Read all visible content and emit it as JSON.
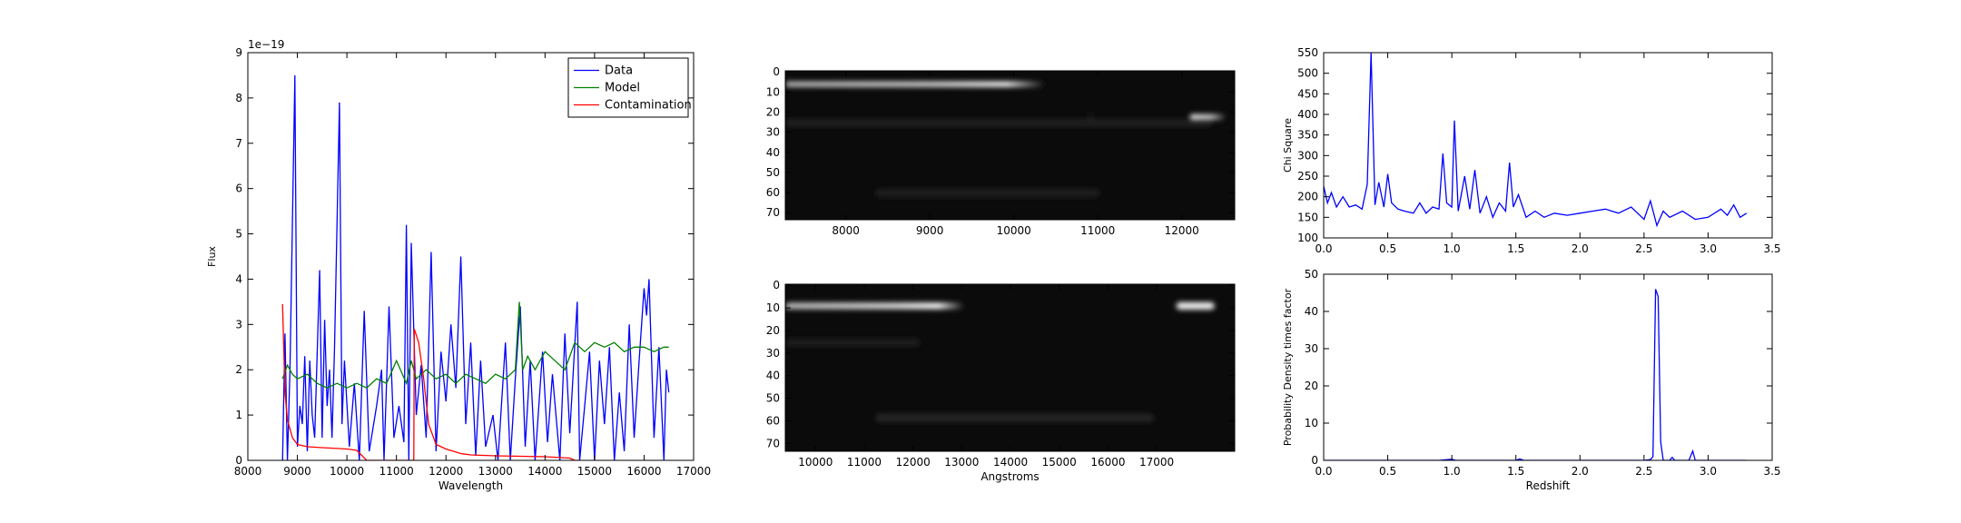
{
  "chart_data": [
    {
      "type": "line",
      "offset_text": "1e−19",
      "xlabel": "Wavelength",
      "ylabel": "Flux",
      "xlim": [
        8000,
        17000
      ],
      "ylim": [
        0,
        9
      ],
      "xticks": [
        8000,
        9000,
        10000,
        11000,
        12000,
        13000,
        14000,
        15000,
        16000,
        17000
      ],
      "yticks": [
        0,
        1,
        2,
        3,
        4,
        5,
        6,
        7,
        8,
        9
      ],
      "legend": "upper right",
      "series": [
        {
          "name": "Data",
          "color": "#0000ff",
          "x": [
            8700,
            8750,
            8800,
            8850,
            8950,
            9000,
            9050,
            9100,
            9150,
            9200,
            9250,
            9300,
            9350,
            9450,
            9500,
            9550,
            9600,
            9650,
            9700,
            9750,
            9850,
            9900,
            9950,
            10050,
            10150,
            10250,
            10350,
            10450,
            10600,
            10700,
            10750,
            10850,
            10950,
            11050,
            11150,
            11200,
            11250,
            11300,
            11400,
            11500,
            11600,
            11700,
            11800,
            11900,
            12000,
            12100,
            12200,
            12300,
            12400,
            12500,
            12600,
            12700,
            12800,
            12950,
            13050,
            13200,
            13300,
            13400,
            13500,
            13600,
            13700,
            13800,
            13950,
            14050,
            14150,
            14300,
            14400,
            14500,
            14650,
            14700,
            14800,
            14900,
            15000,
            15100,
            15200,
            15300,
            15400,
            15500,
            15600,
            15700,
            15800,
            15900,
            16000,
            16050,
            16100,
            16200,
            16300,
            16400,
            16450,
            16500
          ],
          "values": [
            0,
            2.8,
            0,
            2.0,
            8.5,
            0.3,
            1.2,
            0.8,
            2.3,
            0.2,
            2.2,
            1.0,
            0.5,
            4.2,
            0.5,
            3.1,
            1.2,
            2.0,
            0.5,
            2.5,
            7.9,
            0.8,
            2.2,
            0.3,
            1.7,
            0,
            3.3,
            0.2,
            1.2,
            2.0,
            0,
            3.4,
            0.5,
            1.2,
            0.4,
            5.2,
            0,
            4.8,
            1.0,
            2.1,
            0.5,
            4.6,
            0.2,
            2.4,
            1.3,
            3.0,
            1.6,
            4.5,
            0.8,
            2.6,
            0.1,
            2.2,
            0.3,
            1.0,
            0,
            2.6,
            0,
            1.8,
            3.4,
            0.3,
            2.2,
            0,
            2.4,
            0.4,
            1.9,
            0,
            2.8,
            0.6,
            3.5,
            0,
            1.2,
            2.4,
            0,
            2.2,
            0.8,
            2.5,
            0,
            1.5,
            0.2,
            3.0,
            0.5,
            2.2,
            3.8,
            3.2,
            4.0,
            0.5,
            2.5,
            0,
            2.0,
            1.5
          ]
        },
        {
          "name": "Model",
          "color": "#008000",
          "x": [
            8700,
            8800,
            8900,
            9000,
            9200,
            9400,
            9600,
            9800,
            10000,
            10200,
            10400,
            10600,
            10800,
            11000,
            11200,
            11300,
            11400,
            11600,
            11800,
            12000,
            12200,
            12400,
            12600,
            12800,
            13000,
            13200,
            13400,
            13480,
            13550,
            13650,
            13800,
            14000,
            14200,
            14400,
            14600,
            14800,
            15000,
            15200,
            15400,
            15600,
            15800,
            16000,
            16200,
            16400,
            16500
          ],
          "values": [
            1.8,
            2.1,
            1.9,
            1.8,
            1.9,
            1.7,
            1.6,
            1.7,
            1.6,
            1.7,
            1.6,
            1.8,
            1.7,
            2.2,
            1.7,
            2.2,
            1.8,
            2.0,
            1.8,
            1.9,
            1.7,
            1.9,
            1.8,
            1.7,
            1.9,
            1.8,
            2.0,
            3.5,
            2.0,
            2.3,
            2.0,
            2.4,
            2.2,
            2.0,
            2.6,
            2.4,
            2.6,
            2.5,
            2.6,
            2.4,
            2.5,
            2.5,
            2.4,
            2.5,
            2.5
          ]
        },
        {
          "name": "Contamination",
          "color": "#ff0000",
          "x": [
            8700,
            8750,
            8800,
            8900,
            9000,
            9200,
            9500,
            10000,
            10200,
            10400,
            10600,
            11000,
            11350,
            11360,
            11450,
            11550,
            11650,
            11800,
            12000,
            12300,
            12500,
            13000,
            14000,
            14500,
            14600,
            14700
          ],
          "values": [
            3.45,
            1.5,
            0.9,
            0.5,
            0.35,
            0.3,
            0.28,
            0.25,
            0.22,
            0,
            0,
            0,
            0,
            2.9,
            2.6,
            1.8,
            0.8,
            0.35,
            0.25,
            0.15,
            0.12,
            0.1,
            0.08,
            0.05,
            0,
            0
          ]
        }
      ]
    },
    {
      "type": "image",
      "xlim": [
        7280,
        12630
      ],
      "ylim": [
        73.5,
        -0.5
      ],
      "xticks": [
        8000,
        9000,
        10000,
        11000,
        12000
      ],
      "yticks": [
        0,
        10,
        20,
        30,
        40,
        50,
        60,
        70
      ]
    },
    {
      "type": "image",
      "xlabel": "Angstroms",
      "xlim": [
        9380,
        18600
      ],
      "ylim": [
        73.5,
        -0.5
      ],
      "xticks": [
        10000,
        11000,
        12000,
        13000,
        14000,
        15000,
        16000,
        17000
      ],
      "yticks": [
        0,
        10,
        20,
        30,
        40,
        50,
        60,
        70
      ]
    },
    {
      "type": "line",
      "ylabel": "Chi Square",
      "xlim": [
        0,
        3.5
      ],
      "ylim": [
        100,
        550
      ],
      "xticks": [
        {
          "value": 0,
          "label": "0.0"
        },
        {
          "value": 0.5,
          "label": "0.5"
        },
        {
          "value": 1,
          "label": "1.0"
        },
        {
          "value": 1.5,
          "label": "1.5"
        },
        {
          "value": 2,
          "label": "2.0"
        },
        {
          "value": 2.5,
          "label": "2.5"
        },
        {
          "value": 3,
          "label": "3.0"
        },
        {
          "value": 3.5,
          "label": "3.5"
        }
      ],
      "yticks": [
        100,
        150,
        200,
        250,
        300,
        350,
        400,
        450,
        500,
        550
      ],
      "series": [
        {
          "color": "#0000ff",
          "x": [
            0,
            0.03,
            0.06,
            0.1,
            0.15,
            0.2,
            0.25,
            0.3,
            0.34,
            0.37,
            0.4,
            0.43,
            0.47,
            0.5,
            0.53,
            0.58,
            0.63,
            0.7,
            0.75,
            0.8,
            0.85,
            0.9,
            0.93,
            0.96,
            1.0,
            1.02,
            1.05,
            1.1,
            1.14,
            1.18,
            1.22,
            1.27,
            1.32,
            1.37,
            1.42,
            1.45,
            1.48,
            1.52,
            1.58,
            1.65,
            1.72,
            1.8,
            1.9,
            2.0,
            2.1,
            2.2,
            2.3,
            2.4,
            2.5,
            2.55,
            2.6,
            2.65,
            2.7,
            2.8,
            2.9,
            3.0,
            3.1,
            3.15,
            3.2,
            3.25,
            3.3
          ],
          "values": [
            225,
            185,
            210,
            175,
            200,
            175,
            180,
            170,
            230,
            550,
            180,
            235,
            175,
            255,
            185,
            170,
            165,
            160,
            185,
            160,
            175,
            170,
            305,
            185,
            175,
            385,
            165,
            250,
            170,
            265,
            160,
            200,
            150,
            185,
            165,
            283,
            175,
            205,
            150,
            165,
            150,
            160,
            155,
            160,
            165,
            170,
            160,
            175,
            145,
            190,
            130,
            165,
            150,
            165,
            145,
            150,
            170,
            155,
            180,
            150,
            160
          ]
        }
      ]
    },
    {
      "type": "line",
      "ylabel": "Probability Density times factor",
      "xlabel": "Redshift",
      "xlim": [
        0,
        3.5
      ],
      "ylim": [
        0,
        50
      ],
      "xticks": [
        {
          "value": 0,
          "label": "0.0"
        },
        {
          "value": 0.5,
          "label": "0.5"
        },
        {
          "value": 1,
          "label": "1.0"
        },
        {
          "value": 1.5,
          "label": "1.5"
        },
        {
          "value": 2,
          "label": "2.0"
        },
        {
          "value": 2.5,
          "label": "2.5"
        },
        {
          "value": 3,
          "label": "3.0"
        },
        {
          "value": 3.5,
          "label": "3.5"
        }
      ],
      "yticks": [
        0,
        10,
        20,
        30,
        40,
        50
      ],
      "series": [
        {
          "color": "#0000ff",
          "x": [
            0,
            0.9,
            0.97,
            1.0,
            1.03,
            1.5,
            1.53,
            1.56,
            2.5,
            2.55,
            2.57,
            2.59,
            2.61,
            2.63,
            2.65,
            2.7,
            2.72,
            2.74,
            2.85,
            2.88,
            2.9,
            3.0,
            3.3
          ],
          "values": [
            0,
            0,
            0.2,
            0.3,
            0,
            0,
            0.4,
            0,
            0,
            0.2,
            1,
            46,
            44,
            5,
            0,
            0,
            0.8,
            0,
            0,
            2.5,
            0,
            0,
            0
          ]
        }
      ]
    }
  ]
}
